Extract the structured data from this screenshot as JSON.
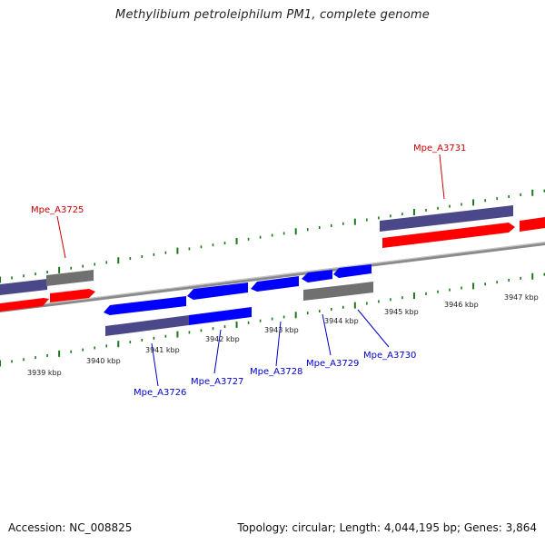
{
  "title": "Methylibium petroleiphilum PM1, complete genome",
  "accession": "Accession: NC_008825",
  "summary": "Topology: circular; Length: 4,044,195 bp; Genes: 3,864",
  "colors": {
    "forward_gene": "#ff0000",
    "reverse_gene": "#0000ff",
    "cds_purple": "#4b4889",
    "cds_gray": "#707070",
    "backbone": "#8a8a8a",
    "tick": "#1a7a1a",
    "label_forward": "#cc0000",
    "label_reverse": "#0000cc"
  },
  "ticks": [
    {
      "label": "3939 kbp"
    },
    {
      "label": "3940 kbp"
    },
    {
      "label": "3941 kbp"
    },
    {
      "label": "3942 kbp"
    },
    {
      "label": "3943 kbp"
    },
    {
      "label": "3944 kbp"
    },
    {
      "label": "3945 kbp"
    },
    {
      "label": "3946 kbp"
    },
    {
      "label": "3947 kbp"
    }
  ],
  "gene_labels": [
    {
      "name": "Mpe_A3725",
      "strand": "forward"
    },
    {
      "name": "Mpe_A3731",
      "strand": "forward"
    },
    {
      "name": "Mpe_A3726",
      "strand": "reverse"
    },
    {
      "name": "Mpe_A3727",
      "strand": "reverse"
    },
    {
      "name": "Mpe_A3728",
      "strand": "reverse"
    },
    {
      "name": "Mpe_A3729",
      "strand": "reverse"
    },
    {
      "name": "Mpe_A3730",
      "strand": "reverse"
    }
  ]
}
